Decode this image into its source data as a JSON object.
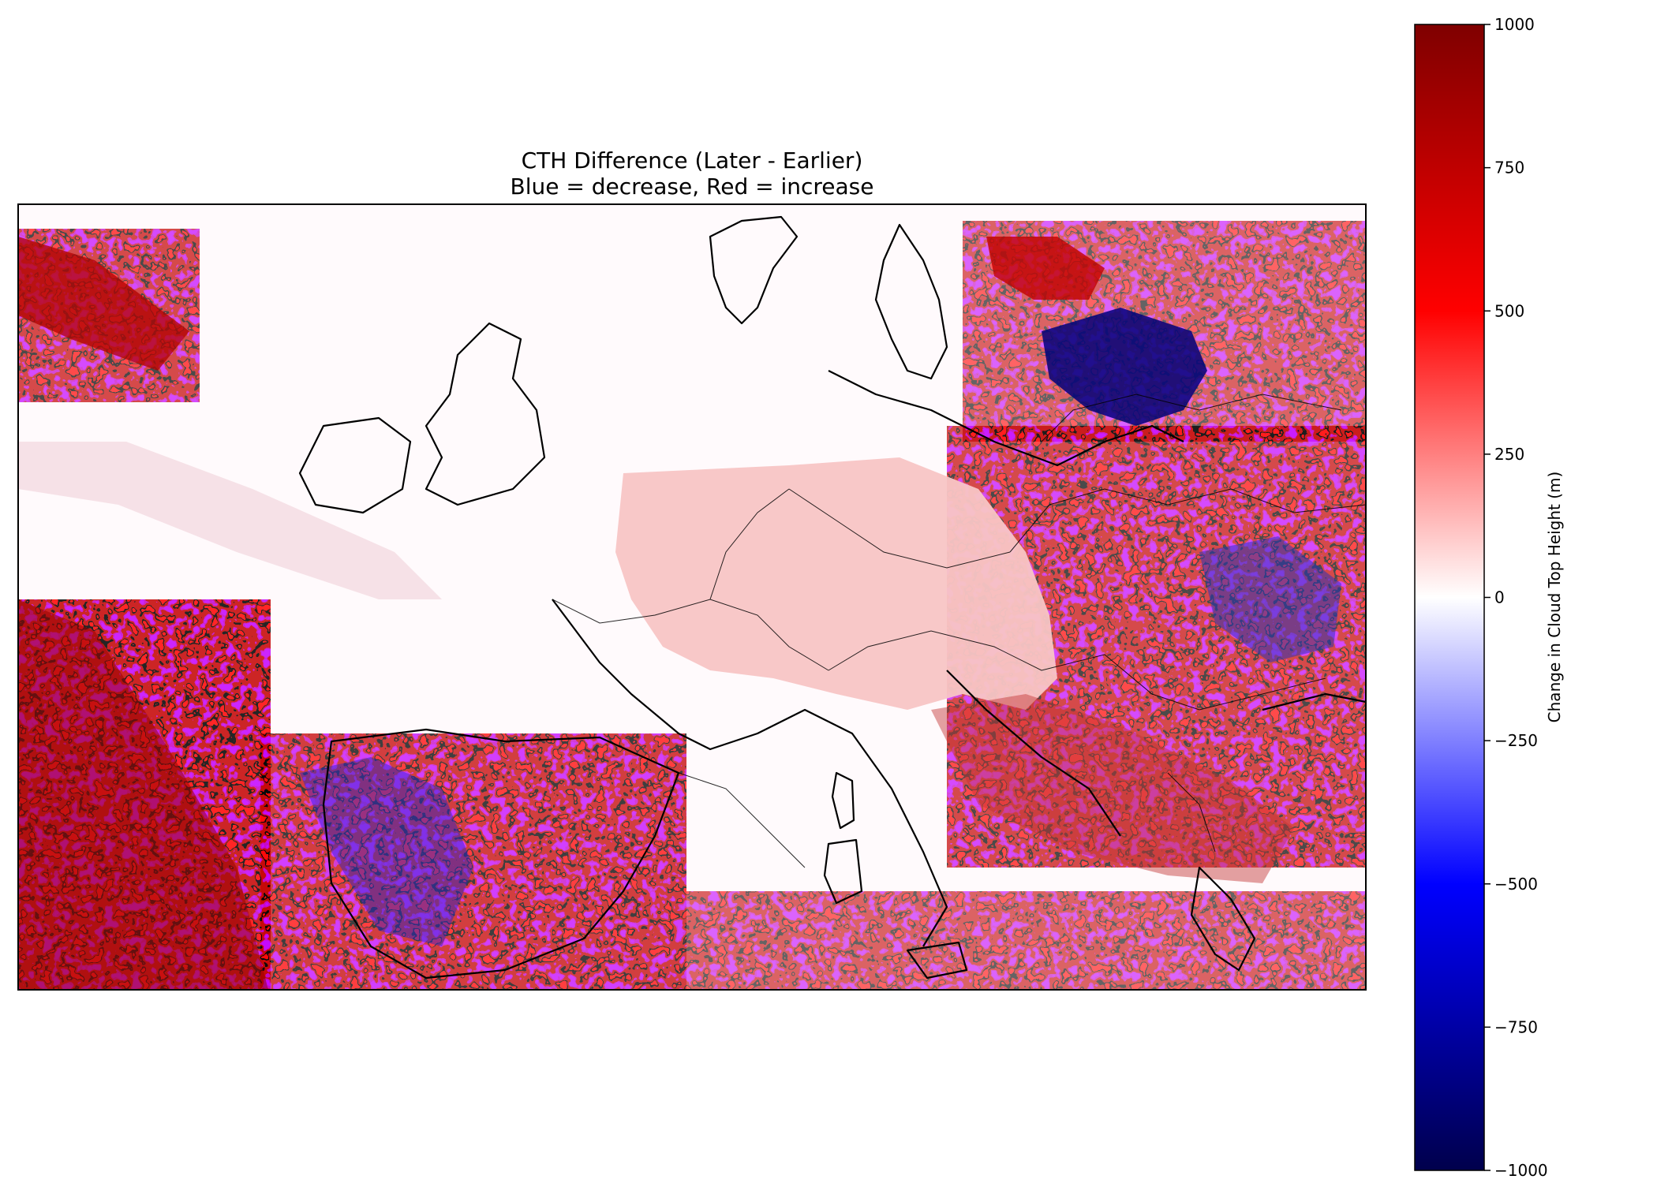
{
  "chart_data": {
    "type": "heatmap",
    "title": "CTH Difference (Later - Earlier)",
    "subtitle": "Blue = decrease, Red = increase",
    "colorbar": {
      "label": "Change in Cloud Top Height (m)",
      "range": [
        -1000,
        1000
      ],
      "ticks": [
        1000,
        750,
        500,
        250,
        0,
        -250,
        -500,
        -750,
        -1000
      ],
      "tick_labels": [
        "1000",
        "750",
        "500",
        "250",
        "0",
        "−250",
        "−500",
        "−750",
        "−1000"
      ],
      "colormap": "seismic"
    },
    "colors": {
      "min": "#00004c",
      "low": "#0000ff",
      "zero": "#ffffff",
      "high": "#ff0000",
      "max": "#7f0000",
      "coastline": "#000000"
    },
    "region": "Europe",
    "grid": false
  }
}
